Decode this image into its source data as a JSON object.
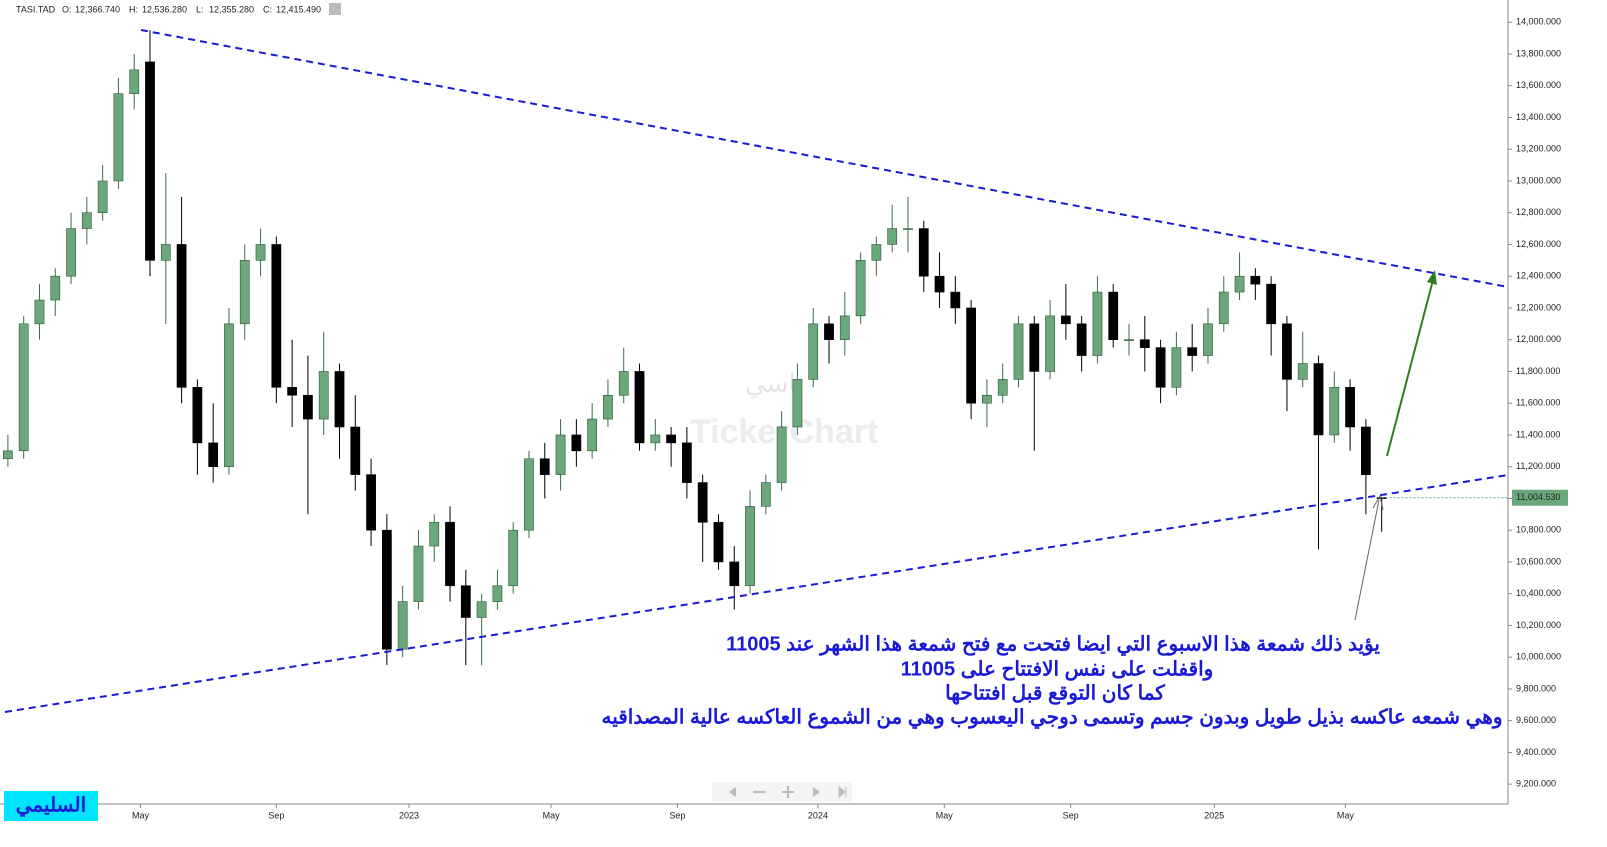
{
  "chart_data": {
    "type": "candlestick",
    "symbol": "TASI.TAD",
    "header": [
      {
        "label": "O:",
        "value": "12,366.740"
      },
      {
        "label": "H:",
        "value": "12,536.280"
      },
      {
        "label": "L:",
        "value": "12,355.280"
      },
      {
        "label": "C:",
        "value": "12,415.490"
      }
    ],
    "watermark": "TickerChart",
    "watermark_arabic": "تاسي",
    "signature": "السليمي",
    "annotation": [
      "يؤيد ذلك شمعة هذا الاسبوع التي ايضا فتحت مع فتح شمعة هذا الشهر عند 11005",
      "واقفلت على نفس الافتتاح على 11005",
      "كما كان التوقع قبل افتتاحها",
      "وهي شمعه عاكسه بذيل طويل وبدون جسم وتسمى دوجي اليعسوب وهي من الشموع العاكسه عالية المصداقيه"
    ],
    "last_price": {
      "value": 11004.53,
      "label": "11,004.530"
    },
    "up_color": "#6aa77a",
    "down_color": "#000000",
    "open": [
      11250,
      11300,
      12100,
      12250,
      12400,
      12700,
      12800,
      13000,
      13550,
      13750,
      12500,
      12600,
      11700,
      11350,
      11200,
      12100,
      12500,
      12600,
      11700,
      11650,
      11500,
      11800,
      11450,
      11150,
      10800,
      10050,
      10350,
      10700,
      10850,
      10450,
      10250,
      10350,
      10450,
      10800,
      11250,
      11150,
      11400,
      11300,
      11500,
      11650,
      11800,
      11350,
      11400,
      11350,
      11100,
      10850,
      10600,
      10450,
      10950,
      11100,
      11450,
      11750,
      12100,
      12000,
      12150,
      12500,
      12600,
      12700,
      12700,
      12400,
      12300,
      12200,
      11600,
      11650,
      11750,
      12100,
      11800,
      12150,
      12100,
      11900,
      12300,
      12000,
      12000,
      11950,
      11700,
      11950,
      11900,
      12100,
      12300,
      12400,
      12350,
      12100,
      11750,
      11850,
      11400,
      11700,
      11450,
      11005
    ],
    "high": [
      11400,
      12150,
      12350,
      12450,
      12800,
      12900,
      13100,
      13650,
      13800,
      13950,
      13050,
      12900,
      11750,
      11600,
      12200,
      12600,
      12700,
      12650,
      12000,
      11900,
      12050,
      11850,
      11650,
      11250,
      10900,
      10450,
      10800,
      10900,
      10950,
      10550,
      10400,
      10550,
      10850,
      11300,
      11350,
      11500,
      11500,
      11600,
      11750,
      11950,
      11850,
      11500,
      11450,
      11450,
      11150,
      10900,
      10700,
      11050,
      11150,
      11550,
      11850,
      12200,
      12150,
      12300,
      12550,
      12650,
      12850,
      12900,
      12750,
      12550,
      12400,
      12250,
      11750,
      11850,
      12150,
      12150,
      12250,
      12350,
      12150,
      12400,
      12350,
      12100,
      12150,
      12000,
      12050,
      12100,
      12200,
      12400,
      12550,
      12450,
      12400,
      12150,
      12050,
      11900,
      11800,
      11750,
      11500,
      11010
    ],
    "low": [
      11200,
      11250,
      12000,
      12150,
      12350,
      12600,
      12750,
      12950,
      13450,
      12400,
      12100,
      11600,
      11150,
      11100,
      11150,
      12000,
      12400,
      11600,
      11450,
      10900,
      11400,
      11250,
      11050,
      10700,
      9950,
      10000,
      10300,
      10600,
      10350,
      9950,
      9950,
      10300,
      10400,
      10750,
      11000,
      11050,
      11200,
      11250,
      11450,
      11600,
      11300,
      11300,
      11200,
      11000,
      10600,
      10550,
      10300,
      10400,
      10900,
      11050,
      11400,
      11700,
      11850,
      11900,
      12100,
      12400,
      12550,
      12550,
      12300,
      12200,
      12100,
      11500,
      11450,
      11600,
      11700,
      11300,
      11750,
      12000,
      11800,
      11850,
      11950,
      11900,
      11800,
      11600,
      11650,
      11800,
      11850,
      12050,
      12250,
      12250,
      11900,
      11550,
      11700,
      10680,
      11350,
      11300,
      10900,
      10790
    ],
    "close": [
      11300,
      12100,
      12250,
      12400,
      12700,
      12800,
      13000,
      13550,
      13700,
      12500,
      12600,
      11700,
      11350,
      11200,
      12100,
      12500,
      12600,
      11700,
      11650,
      11500,
      11800,
      11450,
      11150,
      10800,
      10050,
      10350,
      10700,
      10850,
      10450,
      10250,
      10350,
      10450,
      10800,
      11250,
      11150,
      11400,
      11300,
      11500,
      11650,
      11800,
      11350,
      11400,
      11350,
      11100,
      10850,
      10600,
      10450,
      10950,
      11100,
      11450,
      11750,
      12100,
      12000,
      12150,
      12500,
      12600,
      12700,
      12700,
      12400,
      12300,
      12200,
      11600,
      11650,
      11750,
      12100,
      11800,
      12150,
      12100,
      11900,
      12300,
      12000,
      12000,
      11950,
      11700,
      11950,
      11900,
      12100,
      12300,
      12400,
      12350,
      12100,
      11750,
      11850,
      11400,
      11700,
      11450,
      11150,
      11004.53
    ],
    "xlim": [
      -0.5,
      95
    ],
    "xticks": [
      {
        "value": 8.4,
        "label": "May"
      },
      {
        "value": 17,
        "label": "Sep"
      },
      {
        "value": 25.4,
        "label": "2023"
      },
      {
        "value": 34.4,
        "label": "May"
      },
      {
        "value": 42.4,
        "label": "Sep"
      },
      {
        "value": 51.3,
        "label": "2024"
      },
      {
        "value": 59.3,
        "label": "May"
      },
      {
        "value": 67.3,
        "label": "Sep"
      },
      {
        "value": 76.4,
        "label": "2025"
      },
      {
        "value": 84.7,
        "label": "May"
      }
    ],
    "ylim": [
      9075,
      14140
    ],
    "yticks": [
      {
        "value": 9200,
        "label": "9,200.000"
      },
      {
        "value": 9400,
        "label": "9,400.000"
      },
      {
        "value": 9600,
        "label": "9,600.000"
      },
      {
        "value": 9800,
        "label": "9,800.000"
      },
      {
        "value": 10000,
        "label": "10,000.000"
      },
      {
        "value": 10200,
        "label": "10,200.000"
      },
      {
        "value": 10400,
        "label": "10,400.000"
      },
      {
        "value": 10600,
        "label": "10,600.000"
      },
      {
        "value": 10800,
        "label": "10,800.000"
      },
      {
        "value": 11000,
        "label": "11,000.000"
      },
      {
        "value": 11200,
        "label": "11,200.000"
      },
      {
        "value": 11400,
        "label": "11,400.000"
      },
      {
        "value": 11600,
        "label": "11,600.000"
      },
      {
        "value": 11800,
        "label": "11,800.000"
      },
      {
        "value": 12000,
        "label": "12,000.000"
      },
      {
        "value": 12200,
        "label": "12,200.000"
      },
      {
        "value": 12400,
        "label": "12,400.000"
      },
      {
        "value": 12600,
        "label": "12,600.000"
      },
      {
        "value": 12800,
        "label": "12,800.000"
      },
      {
        "value": 13000,
        "label": "13,000.000"
      },
      {
        "value": 13200,
        "label": "13,200.000"
      },
      {
        "value": 13400,
        "label": "13,400.000"
      },
      {
        "value": 13600,
        "label": "13,600.000"
      },
      {
        "value": 13800,
        "label": "13,800.000"
      },
      {
        "value": 14000,
        "label": "14,000.000"
      }
    ]
  }
}
